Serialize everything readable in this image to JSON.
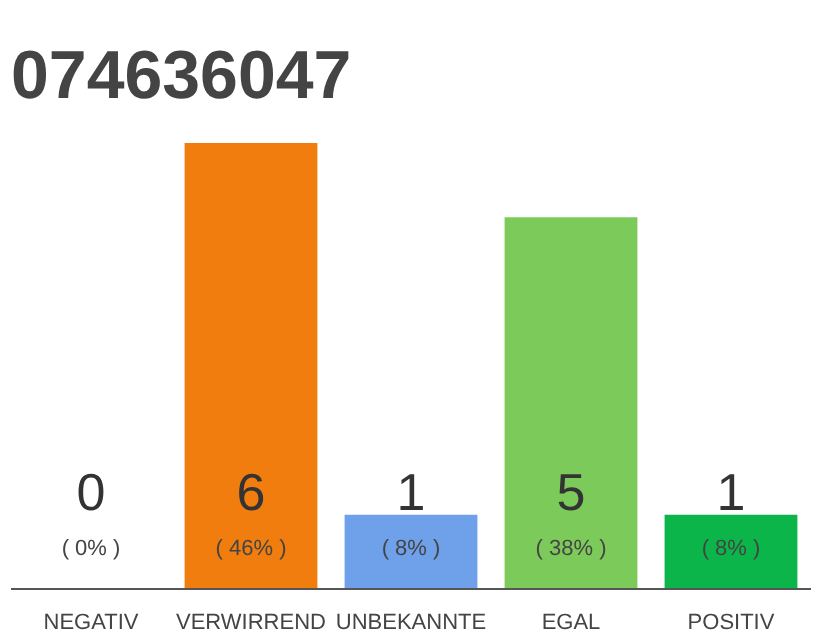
{
  "chart_data": {
    "type": "bar",
    "title": "074636047",
    "categories": [
      "NEGATIV",
      "VERWIRREND",
      "UNBEKANNTE",
      "EGAL",
      "POSITIV"
    ],
    "values": [
      0,
      6,
      1,
      5,
      1
    ],
    "colors": [
      "#9e9e9e",
      "#f07d0e",
      "#6fa0ea",
      "#7ccb5a",
      "#0bb54a"
    ],
    "ylim": [
      0,
      6
    ],
    "tick_labels": "x",
    "grid": false,
    "data_labels": true,
    "annotations": [
      "( 0% )",
      "( 46% )",
      "( 8% )",
      "( 38% )",
      "( 8% )"
    ]
  }
}
